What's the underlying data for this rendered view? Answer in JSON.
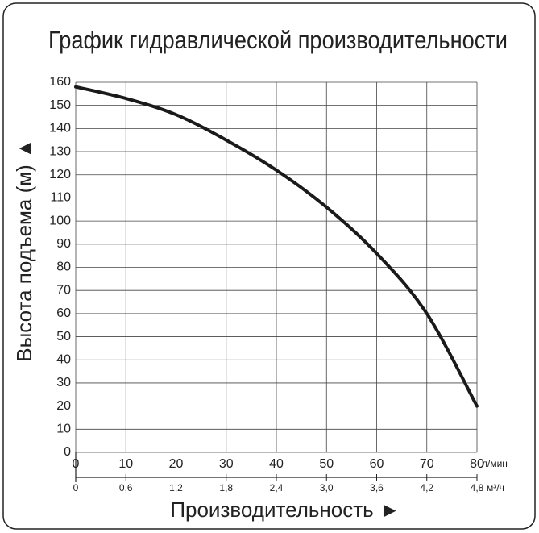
{
  "chart_data": {
    "type": "line",
    "title": "График гидравлической производительности",
    "ylabel": "Высота подъема (м) ▲",
    "xlabel": "Производительность ►",
    "x_unit": "л/мин",
    "x2_unit": "м³/ч",
    "xlim": [
      0,
      80
    ],
    "xticks": [
      0,
      10,
      20,
      30,
      40,
      50,
      60,
      70,
      80
    ],
    "x2lim": [
      0,
      4.8
    ],
    "x2ticks": [
      0,
      {
        "value": 0.6,
        "label": "0,6"
      },
      {
        "value": 1.2,
        "label": "1,2"
      },
      {
        "value": 1.8,
        "label": "1,8"
      },
      {
        "value": 2.4,
        "label": "2,4"
      },
      {
        "value": 3.0,
        "label": "3,0"
      },
      {
        "value": 3.6,
        "label": "3,6"
      },
      {
        "value": 4.2,
        "label": "4,2"
      },
      {
        "value": 4.8,
        "label": "4,8"
      }
    ],
    "ylim": [
      0,
      160
    ],
    "yticks": [
      0,
      10,
      20,
      30,
      40,
      50,
      60,
      70,
      80,
      90,
      100,
      110,
      120,
      130,
      140,
      150,
      160
    ],
    "grid": true,
    "series": [
      {
        "color": "#1a1a1a",
        "x": [
          0,
          10,
          20,
          30,
          40,
          50,
          60,
          70,
          80
        ],
        "values": [
          158,
          153,
          146,
          135,
          122,
          106,
          86,
          60,
          20
        ]
      }
    ]
  }
}
